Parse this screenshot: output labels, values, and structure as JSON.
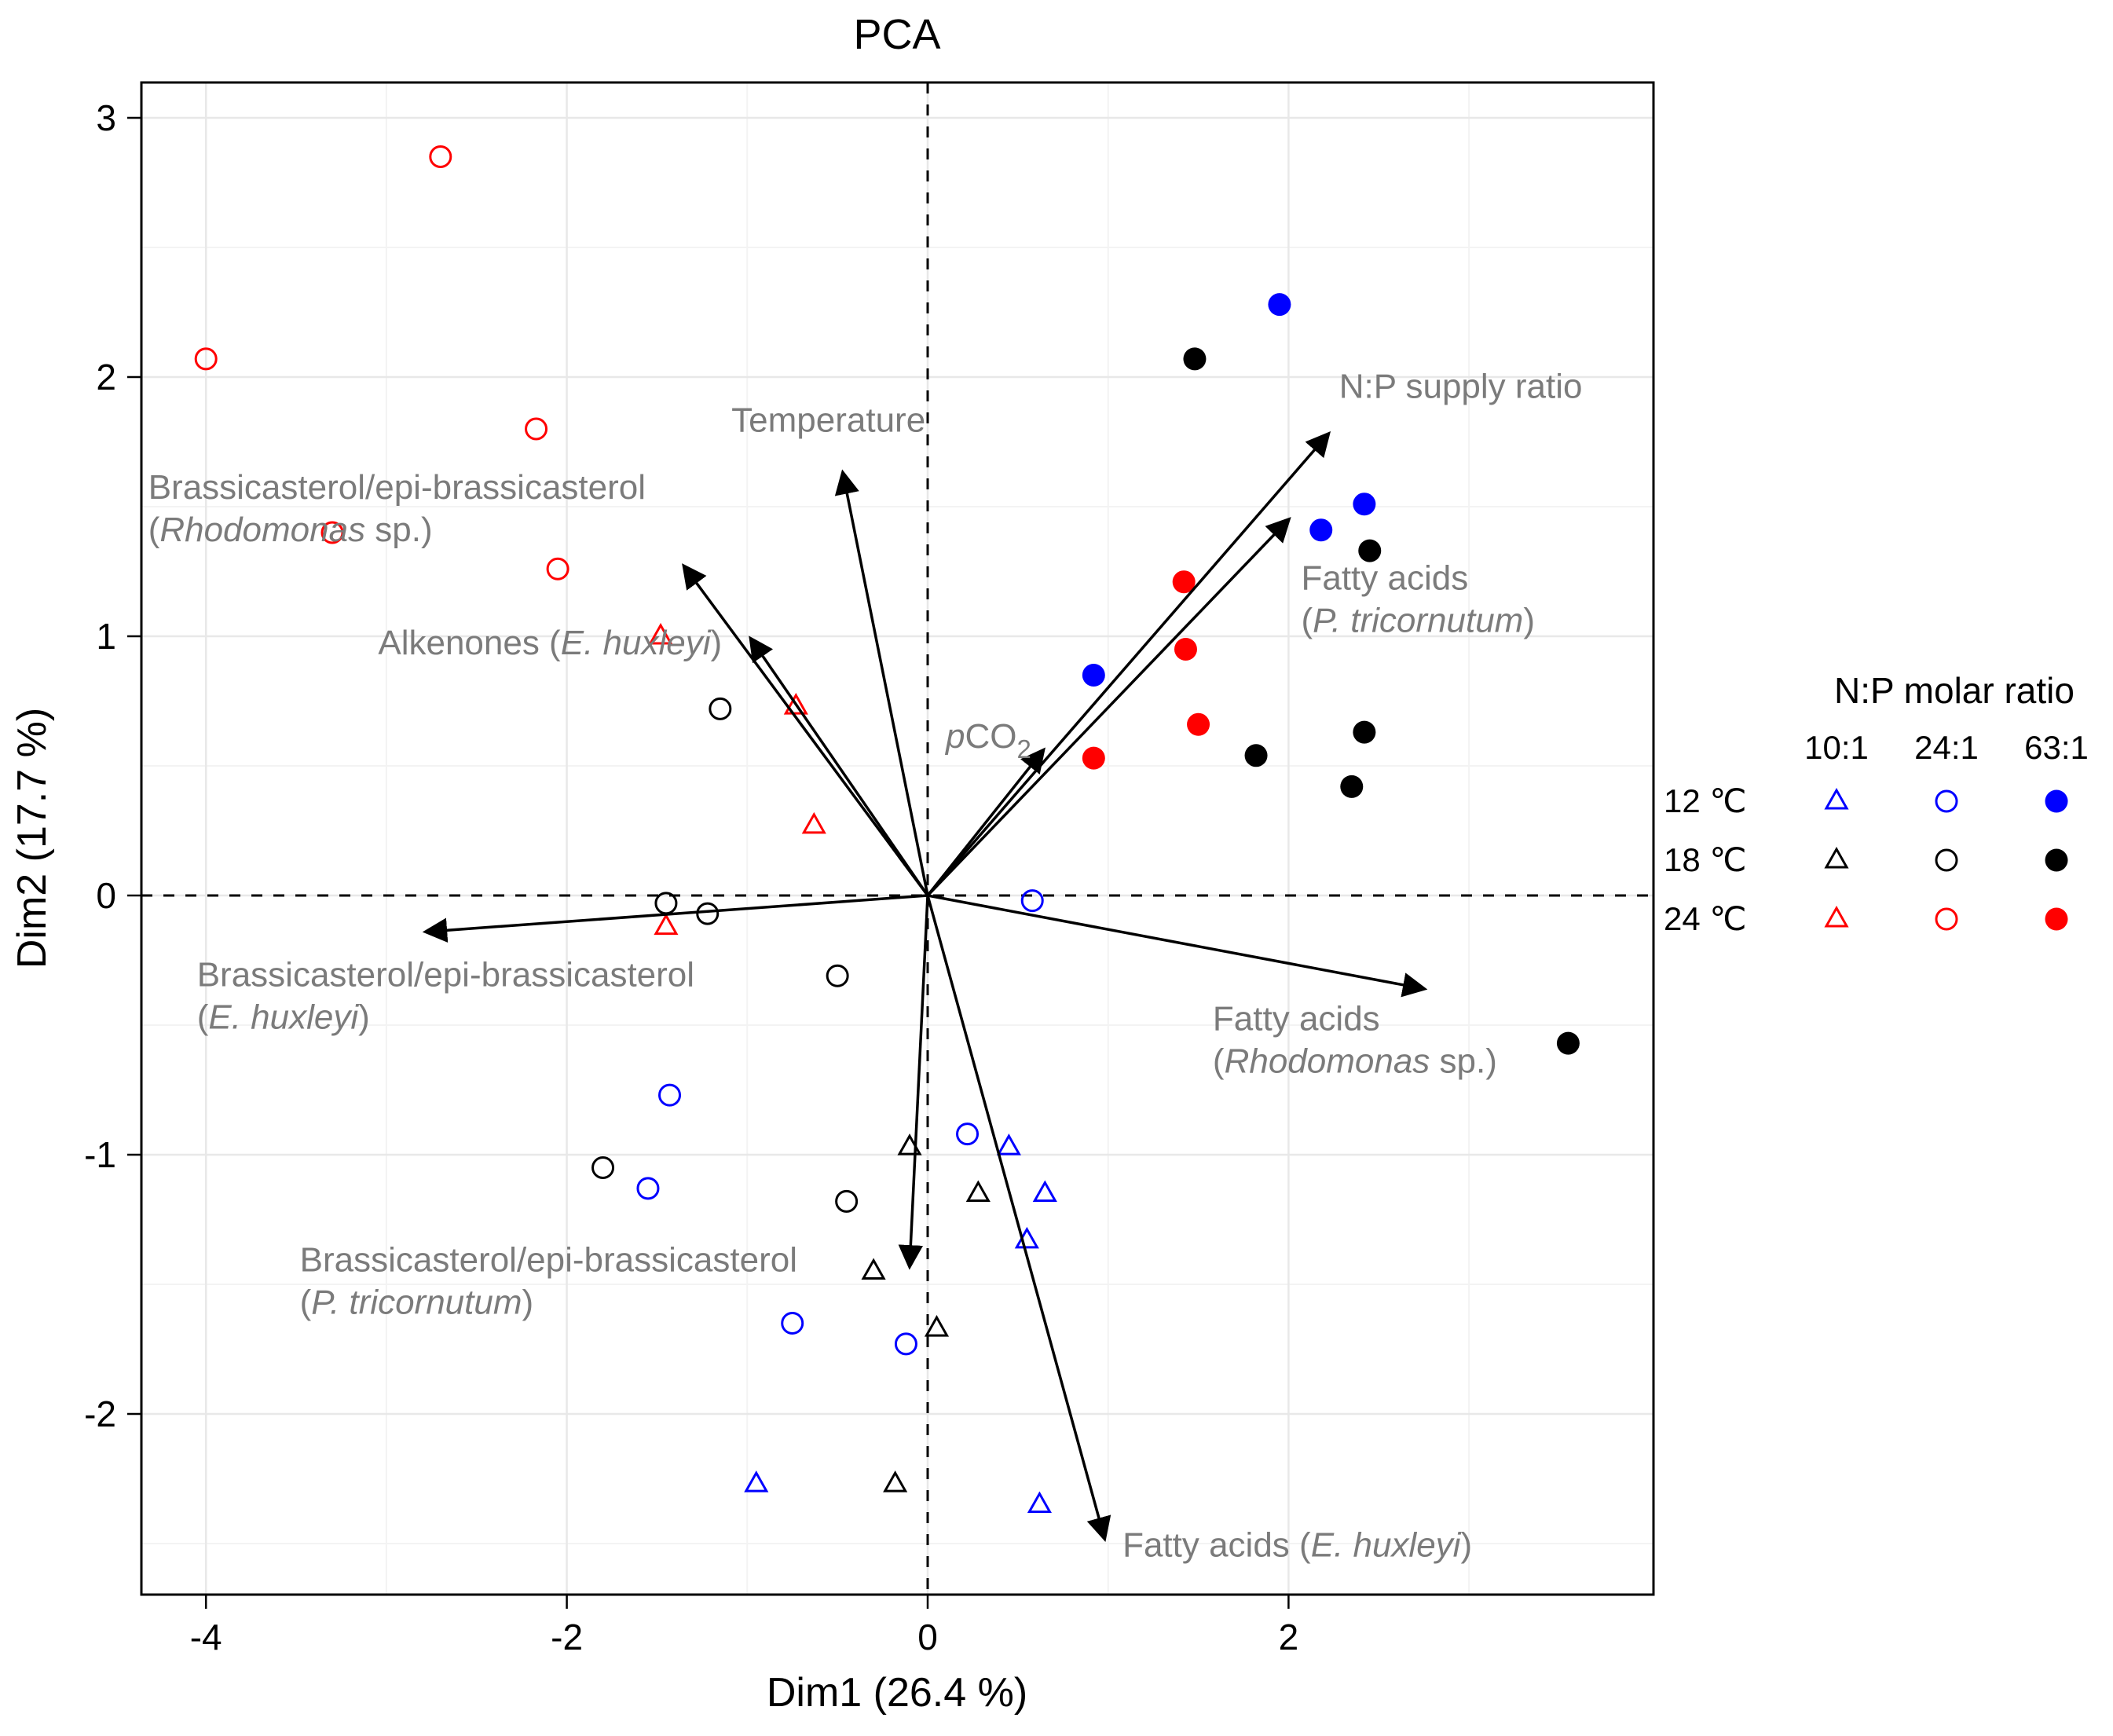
{
  "chart": {
    "title": "PCA",
    "xlabel": "Dim1 (26.4 %)",
    "ylabel": "Dim2 (17.7 %)"
  },
  "colors": {
    "temp_12": "#0000ff",
    "temp_18": "#000000",
    "temp_24": "#ff0000",
    "label_gray": "#7b7b7b",
    "grid_major": "#e8e8e8",
    "grid_minor": "#f3f3f3"
  },
  "legend": {
    "title": "N:P molar ratio",
    "columns": [
      "10:1",
      "24:1",
      "63:1"
    ],
    "markers": [
      "open-triangle",
      "open-circle",
      "filled-circle"
    ],
    "rows": [
      {
        "label": "12 ℃",
        "color": "#0000ff"
      },
      {
        "label": "18 ℃",
        "color": "#000000"
      },
      {
        "label": "24 ℃",
        "color": "#ff0000"
      }
    ]
  },
  "chart_data": {
    "type": "scatter",
    "subtype": "pca-biplot",
    "title": "PCA",
    "xlabel": "Dim1 (26.4 %)",
    "ylabel": "Dim2 (17.7 %)",
    "xlim": [
      -4.36,
      4.02
    ],
    "ylim": [
      -2.72,
      3.14
    ],
    "xticks": [
      -4,
      -2,
      0,
      2
    ],
    "yticks": [
      -2,
      -1,
      0,
      1,
      2,
      3
    ],
    "xticks_minor": [
      -3,
      -1,
      1,
      3
    ],
    "yticks_minor": [
      -2.5,
      -1.5,
      -0.5,
      0.5,
      1.5,
      2.5
    ],
    "grid": true,
    "legend_position": "right",
    "reference_lines": [
      {
        "axis": "x",
        "value": 0,
        "style": "dashed"
      },
      {
        "axis": "y",
        "value": 0,
        "style": "dashed"
      }
    ],
    "series": [
      {
        "key": "12c-10-1",
        "temperature": "12 ℃",
        "np_ratio": "10:1",
        "marker": "open-triangle",
        "color": "#0000ff",
        "points": [
          [
            0.45,
            -0.97
          ],
          [
            0.65,
            -1.15
          ],
          [
            0.55,
            -1.33
          ],
          [
            -0.95,
            -2.27
          ],
          [
            0.62,
            -2.35
          ]
        ]
      },
      {
        "key": "18c-10-1",
        "temperature": "18 ℃",
        "np_ratio": "10:1",
        "marker": "open-triangle",
        "color": "#000000",
        "points": [
          [
            -0.1,
            -0.97
          ],
          [
            0.28,
            -1.15
          ],
          [
            -0.3,
            -1.45
          ],
          [
            0.05,
            -1.67
          ],
          [
            -0.18,
            -2.27
          ]
        ]
      },
      {
        "key": "24c-10-1",
        "temperature": "24 ℃",
        "np_ratio": "10:1",
        "marker": "open-triangle",
        "color": "#ff0000",
        "points": [
          [
            -1.48,
            1.0
          ],
          [
            -0.73,
            0.73
          ],
          [
            -0.63,
            0.27
          ],
          [
            -1.45,
            -0.12
          ]
        ]
      },
      {
        "key": "12c-24-1",
        "temperature": "12 ℃",
        "np_ratio": "24:1",
        "marker": "open-circle",
        "color": "#0000ff",
        "points": [
          [
            0.58,
            -0.02
          ],
          [
            -1.43,
            -0.77
          ],
          [
            0.22,
            -0.92
          ],
          [
            -1.55,
            -1.13
          ],
          [
            -0.75,
            -1.65
          ],
          [
            -0.12,
            -1.73
          ]
        ]
      },
      {
        "key": "18c-24-1",
        "temperature": "18 ℃",
        "np_ratio": "24:1",
        "marker": "open-circle",
        "color": "#000000",
        "points": [
          [
            -1.15,
            0.72
          ],
          [
            -1.45,
            -0.03
          ],
          [
            -1.22,
            -0.07
          ],
          [
            -0.5,
            -0.31
          ],
          [
            -1.8,
            -1.05
          ],
          [
            -0.45,
            -1.18
          ]
        ]
      },
      {
        "key": "24c-24-1",
        "temperature": "24 ℃",
        "np_ratio": "24:1",
        "marker": "open-circle",
        "color": "#ff0000",
        "points": [
          [
            -2.7,
            2.85
          ],
          [
            -4.0,
            2.07
          ],
          [
            -2.17,
            1.8
          ],
          [
            -3.3,
            1.4
          ],
          [
            -2.05,
            1.26
          ]
        ]
      },
      {
        "key": "12c-63-1",
        "temperature": "12 ℃",
        "np_ratio": "63:1",
        "marker": "filled-circle",
        "color": "#0000ff",
        "points": [
          [
            1.95,
            2.28
          ],
          [
            2.42,
            1.51
          ],
          [
            2.18,
            1.41
          ],
          [
            0.92,
            0.85
          ]
        ]
      },
      {
        "key": "18c-63-1",
        "temperature": "18 ℃",
        "np_ratio": "63:1",
        "marker": "filled-circle",
        "color": "#000000",
        "points": [
          [
            1.48,
            2.07
          ],
          [
            2.45,
            1.33
          ],
          [
            2.42,
            0.63
          ],
          [
            1.82,
            0.54
          ],
          [
            2.35,
            0.42
          ],
          [
            3.55,
            -0.57
          ]
        ]
      },
      {
        "key": "24c-63-1",
        "temperature": "24 ℃",
        "np_ratio": "63:1",
        "marker": "filled-circle",
        "color": "#ff0000",
        "points": [
          [
            1.42,
            1.21
          ],
          [
            1.43,
            0.95
          ],
          [
            1.5,
            0.66
          ],
          [
            0.92,
            0.53
          ]
        ]
      }
    ],
    "loadings": [
      {
        "name": "temperature",
        "tip": [
          -0.47,
          1.63
        ],
        "label": {
          "anchor": "middle",
          "pos": [
            -0.55,
            1.79
          ],
          "lines": [
            [
              {
                "t": "Temperature"
              }
            ]
          ]
        }
      },
      {
        "name": "brassicasterol-rhodomonas",
        "tip": [
          -1.35,
          1.27
        ],
        "label": {
          "anchor": "start",
          "pos": [
            -4.32,
            1.53
          ],
          "lines": [
            [
              {
                "t": "Brassicasterol/epi-brassicasterol"
              }
            ],
            [
              {
                "t": "("
              },
              {
                "t": "Rhodomonas",
                "i": true
              },
              {
                "t": " sp.)"
              }
            ]
          ]
        }
      },
      {
        "name": "alkenones-e-huxleyi",
        "tip": [
          -0.98,
          0.99
        ],
        "label": {
          "anchor": "end",
          "pos": [
            -1.14,
            0.93
          ],
          "lines": [
            [
              {
                "t": "Alkenones ("
              },
              {
                "t": "E. huxleyi",
                "i": true
              },
              {
                "t": ")"
              }
            ]
          ]
        }
      },
      {
        "name": "np-supply-ratio",
        "tip": [
          2.22,
          1.78
        ],
        "label": {
          "anchor": "start",
          "pos": [
            2.28,
            1.92
          ],
          "lines": [
            [
              {
                "t": "N:P supply ratio"
              }
            ]
          ]
        }
      },
      {
        "name": "fatty-acids-p-tricornutum",
        "tip": [
          2.0,
          1.45
        ],
        "label": {
          "anchor": "start",
          "pos": [
            2.07,
            1.18
          ],
          "lines": [
            [
              {
                "t": "Fatty acids"
              }
            ],
            [
              {
                "t": "("
              },
              {
                "t": "P. tricornutum",
                "i": true
              },
              {
                "t": ")"
              }
            ]
          ]
        }
      },
      {
        "name": "pco2",
        "tip": [
          0.64,
          0.56
        ],
        "label": {
          "anchor": "start",
          "pos": [
            0.1,
            0.57
          ],
          "lines": [
            [
              {
                "t": "p",
                "i": true
              },
              {
                "t": "CO"
              },
              {
                "t": "2",
                "sub": true
              }
            ]
          ]
        }
      },
      {
        "name": "brassicasterol-e-huxleyi",
        "tip": [
          -2.78,
          -0.14
        ],
        "label": {
          "anchor": "start",
          "pos": [
            -4.05,
            -0.35
          ],
          "lines": [
            [
              {
                "t": "Brassicasterol/epi-brassicasterol"
              }
            ],
            [
              {
                "t": "("
              },
              {
                "t": "E. huxleyi",
                "i": true
              },
              {
                "t": ")"
              }
            ]
          ]
        }
      },
      {
        "name": "fatty-acids-rhodomonas",
        "tip": [
          2.75,
          -0.36
        ],
        "label": {
          "anchor": "start",
          "pos": [
            1.58,
            -0.52
          ],
          "lines": [
            [
              {
                "t": "Fatty acids"
              }
            ],
            [
              {
                "t": "("
              },
              {
                "t": "Rhodomonas",
                "i": true
              },
              {
                "t": " sp.)"
              }
            ]
          ]
        }
      },
      {
        "name": "brassicasterol-p-tricornutum",
        "tip": [
          -0.1,
          -1.43
        ],
        "label": {
          "anchor": "start",
          "pos": [
            -3.48,
            -1.45
          ],
          "lines": [
            [
              {
                "t": "Brassicasterol/epi-brassicasterol"
              }
            ],
            [
              {
                "t": "("
              },
              {
                "t": "P. tricornutum",
                "i": true
              },
              {
                "t": ")"
              }
            ]
          ]
        }
      },
      {
        "name": "fatty-acids-e-huxleyi",
        "tip": [
          0.98,
          -2.48
        ],
        "label": {
          "anchor": "start",
          "pos": [
            1.08,
            -2.55
          ],
          "lines": [
            [
              {
                "t": "Fatty acids ("
              },
              {
                "t": "E. huxleyi",
                "i": true
              },
              {
                "t": ")"
              }
            ]
          ]
        }
      }
    ]
  }
}
